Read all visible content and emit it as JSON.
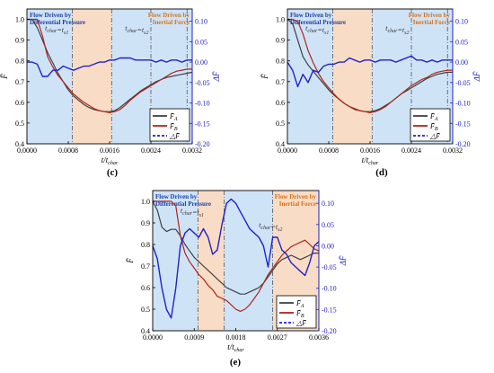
{
  "chart_data": [
    {
      "type": "line",
      "panel_label": "(c)",
      "xlabel": "t/t_char",
      "ylabel": "F̄",
      "ylabel_right": "ΔF̄",
      "xlim": [
        0,
        0.0032
      ],
      "ylim": [
        0.4,
        1.05
      ],
      "ylim_right": [
        -0.2,
        0.13
      ],
      "x_ticks": [
        "0.0000",
        "0.0008",
        "0.0016",
        "0.0024",
        "0.0032"
      ],
      "y_ticks": [
        "0.4",
        "0.5",
        "0.6",
        "0.7",
        "0.8",
        "0.9",
        "1.0"
      ],
      "y_right_ticks": [
        "-0.20",
        "-0.15",
        "-0.10",
        "-0.05",
        "0.00",
        "0.05",
        "0.10"
      ],
      "regions": [
        {
          "from": 0,
          "to": 0.00088,
          "color": "#cfe3f7",
          "label_line1": "Flow Driven by",
          "label_line2": "Differential Pressure",
          "label_color": "#1f3fa8"
        },
        {
          "from": 0.00088,
          "to": 0.00164,
          "color": "#f9dcc6",
          "label_line1": "",
          "label_line2": "",
          "label_color": ""
        },
        {
          "from": 0.00164,
          "to": 0.0032,
          "color": "#cfe3f7",
          "label_line1": "Flow Driven by",
          "label_line2": "Inertial Force",
          "label_color": "#d4731c"
        }
      ],
      "dividers": [
        0.00088,
        0.00164,
        0.0024,
        0.0031
      ],
      "annotations": [
        {
          "text": "t_char=t_s1",
          "x": 0.00035,
          "y": 0.945
        },
        {
          "text": "t_char=t_s2",
          "x": 0.0019,
          "y": 0.945
        }
      ],
      "legend_entries": [
        "F̄_A",
        "F̄_B",
        "△F̄"
      ],
      "series": [
        {
          "name": "F̄_A",
          "color": "#404040",
          "axis": "left",
          "x": [
            0,
            0.0001,
            0.0002,
            0.0003,
            0.0004,
            0.0005,
            0.0006,
            0.0007,
            0.0008,
            0.0009,
            0.001,
            0.0011,
            0.0012,
            0.0013,
            0.0014,
            0.0015,
            0.0016,
            0.0017,
            0.0018,
            0.0019,
            0.002,
            0.0021,
            0.0022,
            0.0023,
            0.0024,
            0.0025,
            0.0026,
            0.0027,
            0.0028,
            0.0029,
            0.003,
            0.0031,
            0.0032
          ],
          "y": [
            1.0,
            1.0,
            0.96,
            0.9,
            0.84,
            0.79,
            0.74,
            0.7,
            0.66,
            0.63,
            0.61,
            0.59,
            0.575,
            0.565,
            0.56,
            0.555,
            0.555,
            0.56,
            0.575,
            0.595,
            0.615,
            0.635,
            0.655,
            0.67,
            0.685,
            0.7,
            0.71,
            0.72,
            0.725,
            0.73,
            0.735,
            0.74,
            0.745
          ]
        },
        {
          "name": "F̄_B",
          "color": "#b02418",
          "axis": "left",
          "x": [
            0,
            0.0001,
            0.0002,
            0.0003,
            0.0004,
            0.0005,
            0.0006,
            0.0007,
            0.0008,
            0.0009,
            0.001,
            0.0011,
            0.0012,
            0.0013,
            0.0014,
            0.0015,
            0.0016,
            0.0017,
            0.0018,
            0.0019,
            0.002,
            0.0021,
            0.0022,
            0.0023,
            0.0024,
            0.0025,
            0.0026,
            0.0027,
            0.0028,
            0.0029,
            0.003,
            0.0031,
            0.0032
          ],
          "y": [
            1.0,
            1.0,
            1.0,
            0.92,
            0.82,
            0.77,
            0.73,
            0.7,
            0.67,
            0.64,
            0.62,
            0.6,
            0.585,
            0.57,
            0.56,
            0.555,
            0.55,
            0.555,
            0.565,
            0.585,
            0.61,
            0.63,
            0.65,
            0.665,
            0.68,
            0.695,
            0.71,
            0.725,
            0.74,
            0.75,
            0.755,
            0.76,
            0.76
          ]
        },
        {
          "name": "△F̄",
          "color": "#1f22c8",
          "axis": "right",
          "x": [
            0,
            0.0001,
            0.0002,
            0.0003,
            0.0004,
            0.0005,
            0.0006,
            0.0007,
            0.0008,
            0.0009,
            0.001,
            0.0011,
            0.0012,
            0.0013,
            0.0014,
            0.0015,
            0.0016,
            0.0017,
            0.0018,
            0.0019,
            0.002,
            0.0021,
            0.0022,
            0.0023,
            0.0024,
            0.0025,
            0.0026,
            0.0027,
            0.0028,
            0.0029,
            0.003,
            0.0031,
            0.0032
          ],
          "y": [
            0.0,
            0.0,
            -0.005,
            -0.035,
            -0.035,
            -0.02,
            -0.02,
            -0.01,
            -0.015,
            -0.02,
            -0.015,
            -0.01,
            -0.01,
            -0.005,
            0.0,
            0.0,
            0.005,
            0.005,
            0.01,
            0.01,
            0.01,
            0.005,
            0.005,
            0.005,
            0.005,
            0.0,
            0.005,
            0.0,
            0.005,
            0.005,
            0.0,
            0.005,
            0.005
          ]
        }
      ]
    },
    {
      "type": "line",
      "panel_label": "(d)",
      "xlabel": "t/t_char",
      "ylabel": "F̄",
      "ylabel_right": "ΔF̄",
      "xlim": [
        0,
        0.0032
      ],
      "ylim": [
        0.4,
        1.05
      ],
      "ylim_right": [
        -0.2,
        0.13
      ],
      "x_ticks": [
        "0.0000",
        "0.0008",
        "0.0016",
        "0.0024",
        "0.0032"
      ],
      "y_ticks": [
        "0.4",
        "0.5",
        "0.6",
        "0.7",
        "0.8",
        "0.9",
        "1.0"
      ],
      "y_right_ticks": [
        "-0.20",
        "-0.15",
        "-0.10",
        "-0.05",
        "0.00",
        "0.05",
        "0.10"
      ],
      "regions": [
        {
          "from": 0,
          "to": 0.00088,
          "color": "#cfe3f7",
          "label_line1": "Flow Driven by",
          "label_line2": "Differential Pressure",
          "label_color": "#1f3fa8"
        },
        {
          "from": 0.00088,
          "to": 0.00164,
          "color": "#f9dcc6",
          "label_line1": "",
          "label_line2": "",
          "label_color": ""
        },
        {
          "from": 0.00164,
          "to": 0.0032,
          "color": "#cfe3f7",
          "label_line1": "Flow Driven by",
          "label_line2": "Inertial Force",
          "label_color": "#d4731c"
        }
      ],
      "dividers": [
        0.00088,
        0.00164,
        0.0024,
        0.0031
      ],
      "annotations": [
        {
          "text": "t_char=t_s1",
          "x": 0.00035,
          "y": 0.945
        },
        {
          "text": "t_char=t_s2",
          "x": 0.0019,
          "y": 0.945
        }
      ],
      "legend_entries": [
        "F̄_A",
        "F̄_B",
        "△F̄"
      ],
      "series": [
        {
          "name": "F̄_A",
          "color": "#404040",
          "axis": "left",
          "x": [
            0,
            0.0001,
            0.0002,
            0.0003,
            0.0004,
            0.0005,
            0.0006,
            0.0007,
            0.0008,
            0.0009,
            0.001,
            0.0011,
            0.0012,
            0.0013,
            0.0014,
            0.0015,
            0.0016,
            0.0017,
            0.0018,
            0.0019,
            0.002,
            0.0021,
            0.0022,
            0.0023,
            0.0024,
            0.0025,
            0.0026,
            0.0027,
            0.0028,
            0.0029,
            0.003,
            0.0031,
            0.0032
          ],
          "y": [
            1.0,
            0.98,
            0.9,
            0.82,
            0.78,
            0.75,
            0.72,
            0.69,
            0.66,
            0.635,
            0.615,
            0.595,
            0.58,
            0.57,
            0.56,
            0.555,
            0.555,
            0.56,
            0.57,
            0.585,
            0.6,
            0.62,
            0.64,
            0.655,
            0.67,
            0.685,
            0.7,
            0.715,
            0.725,
            0.735,
            0.74,
            0.745,
            0.745
          ]
        },
        {
          "name": "F̄_B",
          "color": "#b02418",
          "axis": "left",
          "x": [
            0,
            0.0001,
            0.0002,
            0.0003,
            0.0004,
            0.0005,
            0.0006,
            0.0007,
            0.0008,
            0.0009,
            0.001,
            0.0011,
            0.0012,
            0.0013,
            0.0014,
            0.0015,
            0.0016,
            0.0017,
            0.0018,
            0.0019,
            0.002,
            0.0021,
            0.0022,
            0.0023,
            0.0024,
            0.0025,
            0.0026,
            0.0027,
            0.0028,
            0.0029,
            0.003,
            0.0031,
            0.0032
          ],
          "y": [
            1.0,
            1.0,
            0.99,
            0.93,
            0.85,
            0.79,
            0.74,
            0.7,
            0.67,
            0.64,
            0.615,
            0.595,
            0.58,
            0.565,
            0.56,
            0.555,
            0.55,
            0.555,
            0.565,
            0.58,
            0.6,
            0.62,
            0.64,
            0.66,
            0.68,
            0.695,
            0.71,
            0.72,
            0.735,
            0.745,
            0.75,
            0.755,
            0.755
          ]
        },
        {
          "name": "△F̄",
          "color": "#1f22c8",
          "axis": "right",
          "x": [
            0,
            0.0001,
            0.0002,
            0.0003,
            0.0004,
            0.0005,
            0.0006,
            0.0007,
            0.0008,
            0.0009,
            0.001,
            0.0011,
            0.0012,
            0.0013,
            0.0014,
            0.0015,
            0.0016,
            0.0017,
            0.0018,
            0.0019,
            0.002,
            0.0021,
            0.0022,
            0.0023,
            0.0024,
            0.0025,
            0.0026,
            0.0027,
            0.0028,
            0.0029,
            0.003,
            0.0031,
            0.0032
          ],
          "y": [
            0.0,
            -0.02,
            -0.06,
            -0.03,
            -0.05,
            -0.02,
            -0.025,
            -0.01,
            -0.005,
            -0.005,
            0.0,
            0.0,
            0.01,
            0.005,
            0.0,
            0.005,
            0.005,
            0.0,
            0.005,
            0.005,
            0.005,
            0.0,
            0.005,
            0.01,
            0.015,
            0.005,
            0.005,
            0.0,
            0.005,
            0.0,
            0.005,
            0.005,
            0.005
          ]
        }
      ]
    },
    {
      "type": "line",
      "panel_label": "(e)",
      "xlabel": "t/t_char",
      "ylabel": "F̄",
      "ylabel_right": "ΔF̄",
      "xlim": [
        0,
        0.0036
      ],
      "ylim": [
        0.4,
        1.05
      ],
      "ylim_right": [
        -0.2,
        0.13
      ],
      "x_ticks": [
        "0.0000",
        "0.0009",
        "0.0018",
        "0.0027",
        "0.0036"
      ],
      "y_ticks": [
        "0.4",
        "0.5",
        "0.6",
        "0.7",
        "0.8",
        "0.9",
        "1.0"
      ],
      "y_right_ticks": [
        "-0.20",
        "-0.15",
        "-0.10",
        "-0.05",
        "0.00",
        "0.05",
        "0.10"
      ],
      "regions": [
        {
          "from": 0,
          "to": 0.00098,
          "color": "#cfe3f7",
          "label_line1": "Flow Driven by",
          "label_line2": "Differential Pressure",
          "label_color": "#1f3fa8"
        },
        {
          "from": 0.00098,
          "to": 0.00155,
          "color": "#f9dcc6",
          "label_line1": "",
          "label_line2": "",
          "label_color": ""
        },
        {
          "from": 0.00155,
          "to": 0.0026,
          "color": "#cfe3f7",
          "label_line1": "",
          "label_line2": "",
          "label_color": ""
        },
        {
          "from": 0.0026,
          "to": 0.0036,
          "color": "#f9dcc6",
          "label_line1": "Flow Driven by",
          "label_line2": "Inertial Force",
          "label_color": "#d4731c"
        }
      ],
      "dividers": [
        0.00098,
        0.00155,
        0.0026
      ],
      "annotations": [
        {
          "text": "t_char=t_s1",
          "x": 0.0006,
          "y": 0.945
        },
        {
          "text": "t_char=t_s2",
          "x": 0.0023,
          "y": 0.88
        }
      ],
      "legend_entries": [
        "F̄_A",
        "F̄_B",
        "△F̄"
      ],
      "series": [
        {
          "name": "F̄_A",
          "color": "#404040",
          "axis": "left",
          "x": [
            0,
            0.0001,
            0.0002,
            0.0003,
            0.0004,
            0.0005,
            0.0006,
            0.0007,
            0.0008,
            0.0009,
            0.001,
            0.0011,
            0.0012,
            0.0013,
            0.0014,
            0.0015,
            0.0016,
            0.0017,
            0.0018,
            0.0019,
            0.002,
            0.0021,
            0.0022,
            0.0023,
            0.0024,
            0.0025,
            0.0026,
            0.0027,
            0.0028,
            0.0029,
            0.003,
            0.0031,
            0.0032,
            0.0033,
            0.0034,
            0.0035,
            0.0036
          ],
          "y": [
            1.0,
            0.96,
            0.88,
            0.86,
            0.87,
            0.87,
            0.84,
            0.8,
            0.77,
            0.74,
            0.72,
            0.7,
            0.68,
            0.66,
            0.64,
            0.62,
            0.6,
            0.59,
            0.58,
            0.57,
            0.57,
            0.58,
            0.59,
            0.6,
            0.62,
            0.65,
            0.68,
            0.71,
            0.73,
            0.74,
            0.75,
            0.74,
            0.73,
            0.74,
            0.75,
            0.76,
            0.76
          ]
        },
        {
          "name": "F̄_B",
          "color": "#b02418",
          "axis": "left",
          "x": [
            0,
            0.0001,
            0.0002,
            0.0003,
            0.0004,
            0.0005,
            0.0006,
            0.0007,
            0.0008,
            0.0009,
            0.001,
            0.0011,
            0.0012,
            0.0013,
            0.0014,
            0.0015,
            0.0016,
            0.0017,
            0.0018,
            0.0019,
            0.002,
            0.0021,
            0.0022,
            0.0023,
            0.0024,
            0.0025,
            0.0026,
            0.0027,
            0.0028,
            0.0029,
            0.003,
            0.0031,
            0.0032,
            0.0033,
            0.0034,
            0.0035,
            0.0036
          ],
          "y": [
            1.0,
            1.0,
            1.0,
            1.0,
            1.0,
            0.98,
            0.84,
            0.76,
            0.72,
            0.69,
            0.66,
            0.64,
            0.61,
            0.59,
            0.56,
            0.55,
            0.54,
            0.52,
            0.5,
            0.49,
            0.5,
            0.52,
            0.55,
            0.58,
            0.62,
            0.66,
            0.69,
            0.72,
            0.75,
            0.77,
            0.79,
            0.8,
            0.81,
            0.82,
            0.8,
            0.78,
            0.77
          ]
        },
        {
          "name": "△F̄",
          "color": "#1f22c8",
          "axis": "right",
          "x": [
            0,
            0.0001,
            0.0002,
            0.0003,
            0.0004,
            0.0005,
            0.0006,
            0.0007,
            0.0008,
            0.0009,
            0.001,
            0.0011,
            0.0012,
            0.0013,
            0.0014,
            0.0015,
            0.0016,
            0.0017,
            0.0018,
            0.0019,
            0.002,
            0.0021,
            0.0022,
            0.0023,
            0.0024,
            0.0025,
            0.0026,
            0.0027,
            0.0028,
            0.0029,
            0.003,
            0.0031,
            0.0032,
            0.0033,
            0.0034,
            0.0035,
            0.0036
          ],
          "y": [
            0.0,
            -0.03,
            -0.1,
            -0.15,
            -0.17,
            -0.1,
            0.0,
            0.03,
            0.04,
            0.03,
            0.02,
            0.04,
            0.02,
            -0.02,
            -0.01,
            0.05,
            0.1,
            0.11,
            0.1,
            0.08,
            0.06,
            0.04,
            0.03,
            0.02,
            0.0,
            -0.05,
            0.02,
            0.02,
            -0.01,
            -0.02,
            -0.04,
            -0.05,
            -0.06,
            -0.07,
            -0.04,
            0.0,
            0.01
          ]
        }
      ]
    }
  ]
}
